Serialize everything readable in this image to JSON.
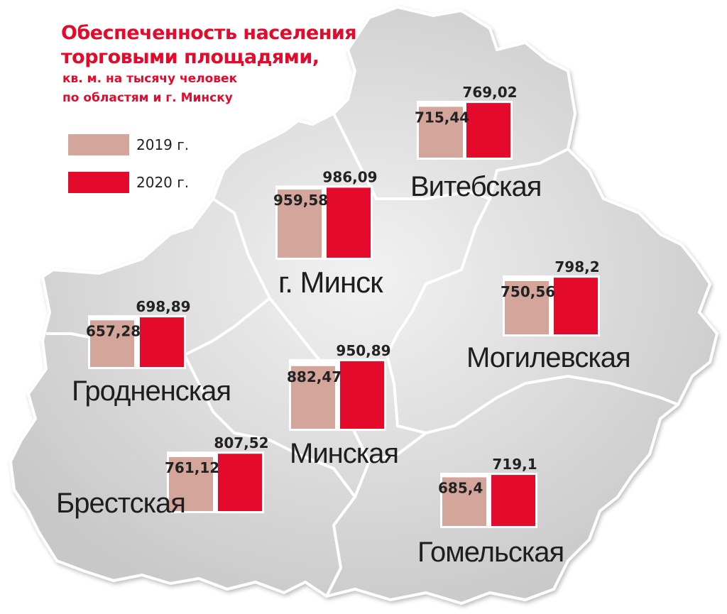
{
  "title": {
    "line1": "Обеспеченность населения",
    "line2": "торговыми площадями,",
    "sub1": "кв. м. на тысячу человек",
    "sub2": "по областям и г. Минску"
  },
  "colors": {
    "y2019": "#d4a59b",
    "y2020": "#e30a2c",
    "title": "#e30a2c",
    "map_fill": "#dcdcdc",
    "map_border": "#ffffff"
  },
  "chart_data": {
    "type": "bar",
    "title": "Обеспеченность населения торговыми площадями, кв. м. на тысячу человек по областям и г. Минску",
    "series": [
      {
        "name": "2019 г.",
        "labels": [
          "715,44",
          "959,58",
          "750,56",
          "657,28",
          "882,47",
          "761,12",
          "685,4"
        ],
        "values": [
          715.44,
          959.58,
          750.56,
          657.28,
          882.47,
          761.12,
          685.4
        ]
      },
      {
        "name": "2020 г.",
        "labels": [
          "769,02",
          "986,09",
          "798,2",
          "698,89",
          "950,89",
          "807,52",
          "719,1"
        ],
        "values": [
          769.02,
          986.09,
          798.2,
          698.89,
          950.89,
          807.52,
          719.1
        ]
      }
    ],
    "categories": [
      "Витебская",
      "г. Минск",
      "Могилевская",
      "Гродненская",
      "Минская",
      "Брестская",
      "Гомельская"
    ],
    "legend": "top-left"
  }
}
